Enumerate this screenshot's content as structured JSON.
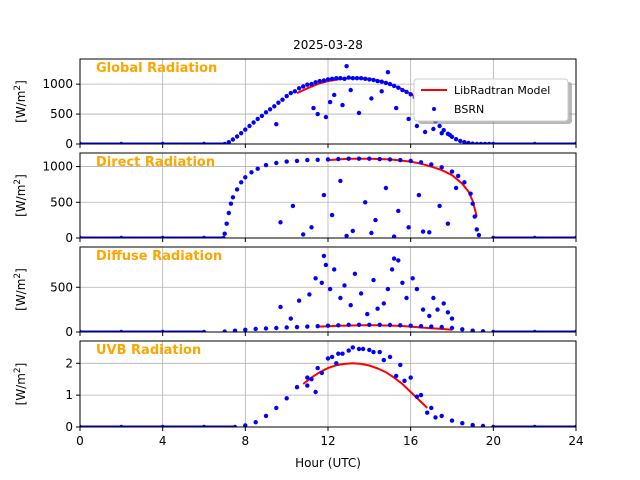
{
  "figure_title": "2025-03-28",
  "colors": {
    "model": "#ff0000",
    "obs": "#0000ff",
    "panel_title": "#ffa500",
    "grid": "#b0b0b0",
    "axes": "#000000"
  },
  "legend": {
    "location": "right, in the top panel",
    "model_label": "LibRadtran Model",
    "obs_label": "BSRN"
  },
  "chart_data": [
    {
      "type": "scatter",
      "title": "Global Radiation",
      "xlabel": "Hour (UTC)",
      "ylabel": "[W/m^2]",
      "ylabel_base": "[W/m",
      "ylabel_sup": "2",
      "ylabel_close": "]",
      "xlim": [
        0,
        24
      ],
      "ylim": [
        0,
        1420
      ],
      "xticks": [
        0,
        4,
        8,
        12,
        16,
        20,
        24
      ],
      "xtick_labels": [
        "0",
        "4",
        "8",
        "12",
        "16",
        "20",
        "24"
      ],
      "yticks": [
        0,
        500,
        1000
      ],
      "ytick_labels": [
        "0",
        "500",
        "1000"
      ],
      "grid": true,
      "series": [
        {
          "name": "LibRadtran Model",
          "kind": "line",
          "x": [
            10.5,
            11.0,
            11.5,
            12.0,
            12.5,
            13.0,
            13.5,
            14.0,
            14.5,
            15.0,
            15.5,
            16.0,
            16.5
          ],
          "y": [
            850,
            930,
            1000,
            1050,
            1080,
            1100,
            1100,
            1090,
            1050,
            1000,
            930,
            840,
            720
          ]
        },
        {
          "name": "BSRN",
          "kind": "scatter",
          "x": [
            0,
            2,
            4,
            6,
            7.0,
            7.2,
            7.4,
            7.6,
            7.8,
            8.0,
            8.2,
            8.4,
            8.6,
            8.8,
            9.0,
            9.2,
            9.4,
            9.6,
            9.8,
            10.0,
            10.2,
            10.4,
            10.6,
            10.8,
            11.0,
            11.2,
            11.4,
            11.6,
            11.8,
            12.0,
            12.2,
            12.4,
            12.6,
            12.8,
            13.0,
            13.2,
            13.4,
            13.6,
            13.8,
            14.0,
            14.2,
            14.4,
            14.6,
            14.8,
            15.0,
            15.2,
            15.4,
            15.6,
            15.8,
            16.0,
            16.2,
            16.4,
            16.6,
            16.8,
            17.0,
            17.2,
            17.4,
            17.6,
            17.8,
            18.0,
            18.2,
            18.4,
            18.6,
            18.8,
            19.0,
            19.2,
            19.4,
            19.6,
            19.8,
            20.0,
            22.0,
            24.0,
            11.5,
            11.9,
            12.1,
            12.3,
            12.7,
            13.1,
            13.5,
            14.1,
            14.6,
            15.3,
            15.9,
            16.3,
            16.7,
            17.1,
            17.5,
            17.9,
            12.9,
            14.9,
            9.5,
            11.3
          ],
          "y": [
            0,
            0,
            0,
            0,
            0,
            30,
            75,
            125,
            180,
            240,
            300,
            360,
            420,
            470,
            530,
            580,
            630,
            690,
            740,
            800,
            850,
            880,
            930,
            960,
            990,
            1000,
            1030,
            1050,
            1060,
            1080,
            1090,
            1100,
            1100,
            1090,
            1110,
            1100,
            1100,
            1100,
            1090,
            1080,
            1070,
            1050,
            1040,
            1020,
            1000,
            970,
            940,
            900,
            870,
            830,
            780,
            720,
            640,
            560,
            470,
            380,
            300,
            230,
            170,
            120,
            80,
            50,
            30,
            15,
            5,
            0,
            0,
            0,
            0,
            0,
            0,
            0,
            500,
            450,
            700,
            820,
            650,
            900,
            520,
            760,
            880,
            600,
            420,
            300,
            200,
            250,
            180,
            150,
            1300,
            1200,
            330,
            600
          ]
        }
      ]
    },
    {
      "type": "scatter",
      "title": "Direct Radiation",
      "xlabel": "Hour (UTC)",
      "ylabel": "[W/m^2]",
      "ylabel_base": "[W/m",
      "ylabel_sup": "2",
      "ylabel_close": "]",
      "xlim": [
        0,
        24
      ],
      "ylim": [
        0,
        1190
      ],
      "xticks": [
        0,
        4,
        8,
        12,
        16,
        20,
        24
      ],
      "xtick_labels": [
        "0",
        "4",
        "8",
        "12",
        "16",
        "20",
        "24"
      ],
      "yticks": [
        0,
        500,
        1000
      ],
      "ytick_labels": [
        "0",
        "500",
        "1000"
      ],
      "grid": true,
      "series": [
        {
          "name": "LibRadtran Model",
          "kind": "line",
          "x": [
            12.0,
            13.0,
            14.0,
            15.0,
            16.0,
            16.5,
            17.0,
            17.5,
            18.0,
            18.5,
            18.8,
            19.0,
            19.2
          ],
          "y": [
            1090,
            1110,
            1110,
            1100,
            1070,
            1040,
            1000,
            950,
            880,
            760,
            650,
            520,
            300
          ]
        },
        {
          "name": "BSRN",
          "kind": "scatter",
          "x": [
            0,
            2,
            4,
            6,
            6.95,
            7.0,
            7.1,
            7.2,
            7.3,
            7.4,
            7.6,
            7.8,
            8.0,
            8.3,
            8.6,
            9.0,
            9.5,
            10.0,
            10.5,
            11.0,
            11.5,
            12.0,
            12.5,
            13.0,
            13.5,
            14.0,
            14.5,
            15.0,
            15.5,
            16.0,
            16.5,
            17.0,
            17.5,
            18.0,
            18.3,
            18.6,
            18.9,
            19.0,
            19.1,
            19.2,
            19.3,
            20.0,
            22.0,
            24.0,
            9.7,
            10.3,
            11.2,
            11.8,
            12.2,
            12.6,
            13.2,
            13.8,
            14.3,
            14.8,
            15.4,
            15.9,
            16.4,
            16.9,
            17.4,
            17.8,
            18.2,
            10.8,
            12.9,
            14.1,
            15.2,
            16.6
          ],
          "y": [
            0,
            0,
            0,
            0,
            0,
            60,
            200,
            350,
            480,
            570,
            680,
            780,
            850,
            920,
            970,
            1020,
            1050,
            1070,
            1080,
            1090,
            1095,
            1100,
            1105,
            1110,
            1110,
            1110,
            1105,
            1100,
            1090,
            1080,
            1060,
            1030,
            990,
            930,
            870,
            780,
            620,
            480,
            300,
            120,
            40,
            0,
            0,
            0,
            220,
            450,
            150,
            600,
            320,
            800,
            100,
            500,
            250,
            700,
            380,
            150,
            600,
            80,
            450,
            200,
            700,
            50,
            30,
            70,
            20,
            90
          ]
        }
      ]
    },
    {
      "type": "scatter",
      "title": "Diffuse Radiation",
      "xlabel": "Hour (UTC)",
      "ylabel": "[W/m^2]",
      "ylabel_base": "[W/m",
      "ylabel_sup": "2",
      "ylabel_close": "]",
      "xlim": [
        0,
        24
      ],
      "ylim": [
        0,
        950
      ],
      "xticks": [
        0,
        4,
        8,
        12,
        16,
        20,
        24
      ],
      "xtick_labels": [
        "0",
        "4",
        "8",
        "12",
        "16",
        "20",
        "24"
      ],
      "yticks": [
        0,
        500
      ],
      "ytick_labels": [
        "0",
        "500"
      ],
      "grid": true,
      "series": [
        {
          "name": "LibRadtran Model",
          "kind": "line",
          "x": [
            11.5,
            12.0,
            12.5,
            13.0,
            13.5,
            14.0,
            14.5,
            15.0,
            15.5,
            16.0,
            16.5,
            17.0,
            17.5,
            18.0
          ],
          "y": [
            60,
            65,
            70,
            72,
            75,
            76,
            75,
            72,
            68,
            60,
            50,
            42,
            35,
            25
          ]
        },
        {
          "name": "BSRN",
          "kind": "scatter",
          "x": [
            0,
            2,
            4,
            6,
            7.0,
            7.5,
            8.0,
            8.5,
            9.0,
            9.5,
            10.0,
            10.5,
            11.0,
            11.5,
            12.0,
            12.5,
            13.0,
            13.5,
            14.0,
            14.5,
            15.0,
            15.5,
            16.0,
            16.5,
            17.0,
            17.5,
            18.0,
            18.5,
            19.0,
            19.5,
            20.0,
            22.0,
            24.0,
            9.7,
            10.2,
            10.6,
            11.1,
            11.4,
            11.7,
            11.9,
            12.1,
            12.3,
            12.6,
            12.8,
            13.1,
            13.3,
            13.6,
            13.9,
            14.2,
            14.4,
            14.7,
            14.9,
            15.1,
            15.4,
            15.6,
            15.8,
            16.1,
            16.3,
            16.6,
            16.9,
            17.1,
            17.3,
            17.6,
            17.8,
            18.0,
            11.8,
            15.2
          ],
          "y": [
            0,
            0,
            0,
            0,
            5,
            15,
            25,
            35,
            40,
            45,
            50,
            55,
            60,
            65,
            70,
            75,
            80,
            80,
            80,
            80,
            78,
            75,
            70,
            65,
            60,
            55,
            45,
            30,
            15,
            8,
            0,
            0,
            0,
            280,
            150,
            350,
            420,
            600,
            550,
            750,
            480,
            700,
            380,
            520,
            300,
            650,
            430,
            200,
            580,
            260,
            320,
            480,
            700,
            800,
            550,
            380,
            600,
            480,
            250,
            180,
            380,
            250,
            320,
            220,
            150,
            850,
            820
          ]
        }
      ]
    },
    {
      "type": "scatter",
      "title": "UVB Radiation",
      "xlabel": "Hour (UTC)",
      "ylabel": "[W/m^2]",
      "ylabel_base": "[W/m",
      "ylabel_sup": "2",
      "ylabel_close": "]",
      "xlim": [
        0,
        24
      ],
      "ylim": [
        0,
        2.7
      ],
      "xticks": [
        0,
        4,
        8,
        12,
        16,
        20,
        24
      ],
      "xtick_labels": [
        "0",
        "4",
        "8",
        "12",
        "16",
        "20",
        "24"
      ],
      "yticks": [
        0,
        1,
        2
      ],
      "ytick_labels": [
        "0",
        "1",
        "2"
      ],
      "grid": true,
      "series": [
        {
          "name": "LibRadtran Model",
          "kind": "line",
          "x": [
            10.8,
            11.2,
            11.6,
            12.0,
            12.4,
            12.8,
            13.2,
            13.6,
            14.0,
            14.4,
            14.8,
            15.2,
            15.6,
            16.0,
            16.4,
            16.8
          ],
          "y": [
            1.35,
            1.55,
            1.72,
            1.85,
            1.94,
            1.98,
            2.0,
            1.98,
            1.93,
            1.84,
            1.72,
            1.55,
            1.35,
            1.1,
            0.85,
            0.6
          ]
        },
        {
          "name": "BSRN",
          "kind": "scatter",
          "x": [
            0,
            2,
            4,
            6,
            7.5,
            8.0,
            8.5,
            9.0,
            9.5,
            10.0,
            10.5,
            11.0,
            11.5,
            12.0,
            12.5,
            13.0,
            13.5,
            14.0,
            14.5,
            15.0,
            15.5,
            16.0,
            16.5,
            17.0,
            17.5,
            18.0,
            18.5,
            19.0,
            19.5,
            20.0,
            22.0,
            24.0,
            11.2,
            11.4,
            11.7,
            12.2,
            12.7,
            13.2,
            13.7,
            14.2,
            14.7,
            15.3,
            15.7,
            16.3,
            16.8,
            17.2,
            11.0,
            12.4
          ],
          "y": [
            0,
            0,
            0,
            0,
            0.0,
            0.05,
            0.15,
            0.35,
            0.6,
            0.9,
            1.25,
            1.55,
            1.85,
            2.15,
            2.3,
            2.4,
            2.45,
            2.42,
            2.35,
            2.2,
            1.95,
            1.55,
            1.0,
            0.6,
            0.35,
            0.2,
            0.12,
            0.06,
            0.03,
            0.0,
            0.0,
            0.0,
            1.5,
            1.1,
            1.7,
            2.2,
            2.3,
            2.5,
            2.45,
            2.35,
            2.1,
            1.6,
            1.45,
            0.95,
            0.45,
            0.3,
            1.3,
            2.0
          ]
        }
      ]
    }
  ]
}
